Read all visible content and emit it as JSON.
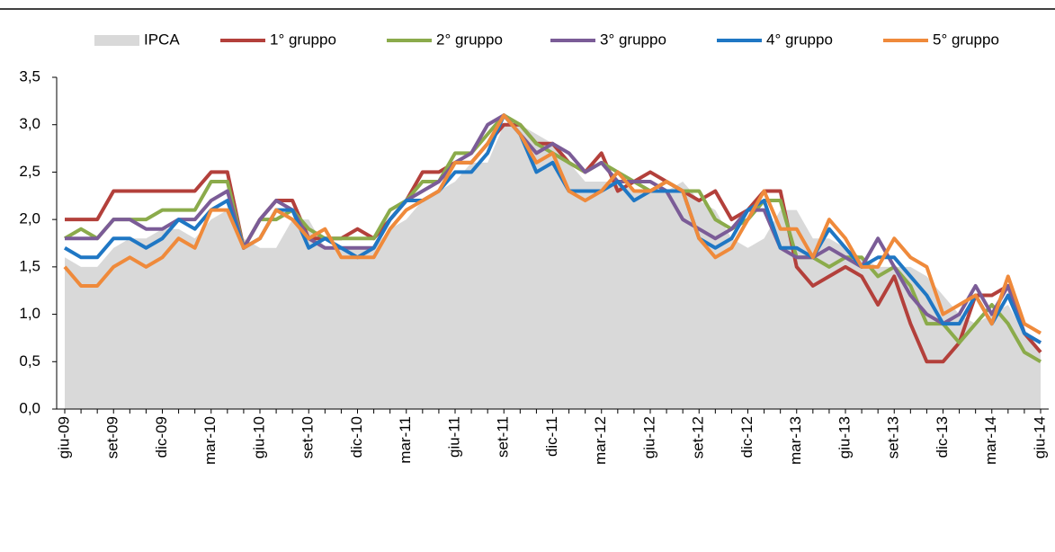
{
  "chart_data": {
    "type": "line",
    "categories": [
      "giu-09",
      null,
      null,
      "set-09",
      null,
      null,
      "dic-09",
      null,
      null,
      "mar-10",
      null,
      null,
      "giu-10",
      null,
      null,
      "set-10",
      null,
      null,
      "dic-10",
      null,
      null,
      "mar-11",
      null,
      null,
      "giu-11",
      null,
      null,
      "set-11",
      null,
      null,
      "dic-11",
      null,
      null,
      "mar-12",
      null,
      null,
      "giu-12",
      null,
      null,
      "set-12",
      null,
      null,
      "dic-12",
      null,
      null,
      "mar-13",
      null,
      null,
      "giu-13",
      null,
      null,
      "set-13",
      null,
      null,
      "dic-13",
      null,
      null,
      "mar-14",
      null,
      null,
      "giu-14"
    ],
    "series": [
      {
        "name": "IPCA",
        "type": "area",
        "color": "#d9d9d9",
        "values": [
          1.6,
          1.5,
          1.5,
          1.7,
          1.8,
          1.8,
          1.9,
          1.9,
          1.8,
          2.0,
          2.1,
          1.8,
          1.7,
          1.7,
          2.0,
          2.0,
          1.7,
          1.7,
          1.7,
          1.7,
          1.9,
          2.0,
          2.2,
          2.3,
          2.4,
          2.6,
          2.6,
          3.0,
          3.0,
          2.9,
          2.8,
          2.6,
          2.4,
          2.4,
          2.4,
          2.3,
          2.3,
          2.3,
          2.4,
          2.2,
          2.1,
          1.8,
          1.7,
          1.8,
          2.1,
          2.1,
          1.8,
          1.8,
          1.7,
          1.6,
          1.5,
          1.5,
          1.5,
          1.4,
          1.2,
          1.0,
          0.9,
          1.0,
          1.1,
          0.8,
          0.6
        ]
      },
      {
        "name": "1° gruppo",
        "color": "#b3403b",
        "values": [
          2.0,
          2.0,
          2.0,
          2.3,
          2.3,
          2.3,
          2.3,
          2.3,
          2.3,
          2.5,
          2.5,
          1.7,
          2.0,
          2.2,
          2.2,
          1.8,
          1.8,
          1.8,
          1.9,
          1.8,
          2.0,
          2.2,
          2.5,
          2.5,
          2.6,
          2.6,
          2.8,
          3.0,
          3.0,
          2.8,
          2.8,
          2.6,
          2.5,
          2.7,
          2.3,
          2.4,
          2.5,
          2.4,
          2.3,
          2.2,
          2.3,
          2.0,
          2.1,
          2.3,
          2.3,
          1.5,
          1.3,
          1.4,
          1.5,
          1.4,
          1.1,
          1.4,
          0.9,
          0.5,
          0.5,
          0.7,
          1.2,
          1.2,
          1.3,
          0.8,
          0.6
        ]
      },
      {
        "name": "2° gruppo",
        "color": "#8bab4b",
        "values": [
          1.8,
          1.9,
          1.8,
          2.0,
          2.0,
          2.0,
          2.1,
          2.1,
          2.1,
          2.4,
          2.4,
          1.7,
          2.0,
          2.0,
          2.1,
          1.9,
          1.8,
          1.8,
          1.8,
          1.8,
          2.1,
          2.2,
          2.4,
          2.4,
          2.7,
          2.7,
          2.9,
          3.1,
          3.0,
          2.8,
          2.7,
          2.6,
          2.5,
          2.6,
          2.5,
          2.4,
          2.3,
          2.4,
          2.3,
          2.3,
          2.0,
          1.9,
          2.0,
          2.2,
          2.2,
          1.6,
          1.6,
          1.5,
          1.6,
          1.6,
          1.4,
          1.5,
          1.3,
          0.9,
          0.9,
          0.7,
          0.9,
          1.1,
          0.9,
          0.6,
          0.5
        ]
      },
      {
        "name": "3° gruppo",
        "color": "#7b5c97",
        "values": [
          1.8,
          1.8,
          1.8,
          2.0,
          2.0,
          1.9,
          1.9,
          2.0,
          2.0,
          2.2,
          2.3,
          1.7,
          2.0,
          2.2,
          2.1,
          1.8,
          1.7,
          1.7,
          1.7,
          1.7,
          2.0,
          2.2,
          2.3,
          2.4,
          2.6,
          2.7,
          3.0,
          3.1,
          2.9,
          2.7,
          2.8,
          2.7,
          2.5,
          2.6,
          2.4,
          2.4,
          2.4,
          2.3,
          2.0,
          1.9,
          1.8,
          1.9,
          2.1,
          2.1,
          1.7,
          1.6,
          1.6,
          1.7,
          1.6,
          1.5,
          1.8,
          1.5,
          1.2,
          1.0,
          0.9,
          1.0,
          1.3,
          1.0,
          1.3,
          0.8,
          0.7
        ]
      },
      {
        "name": "4° gruppo",
        "color": "#1f77c4",
        "values": [
          1.7,
          1.6,
          1.6,
          1.8,
          1.8,
          1.7,
          1.8,
          2.0,
          1.9,
          2.1,
          2.2,
          1.7,
          1.8,
          2.1,
          2.1,
          1.7,
          1.8,
          1.7,
          1.6,
          1.7,
          2.0,
          2.2,
          2.2,
          2.3,
          2.5,
          2.5,
          2.7,
          3.1,
          2.9,
          2.5,
          2.6,
          2.3,
          2.3,
          2.3,
          2.4,
          2.2,
          2.3,
          2.3,
          2.3,
          1.8,
          1.7,
          1.8,
          2.1,
          2.2,
          1.7,
          1.7,
          1.6,
          1.9,
          1.7,
          1.5,
          1.6,
          1.6,
          1.4,
          1.2,
          0.9,
          0.9,
          1.2,
          0.9,
          1.2,
          0.8,
          0.7
        ]
      },
      {
        "name": "5° gruppo",
        "color": "#ef8a3b",
        "values": [
          1.5,
          1.3,
          1.3,
          1.5,
          1.6,
          1.5,
          1.6,
          1.8,
          1.7,
          2.1,
          2.1,
          1.7,
          1.8,
          2.1,
          2.0,
          1.8,
          1.9,
          1.6,
          1.6,
          1.6,
          1.9,
          2.1,
          2.2,
          2.3,
          2.6,
          2.6,
          2.8,
          3.1,
          2.9,
          2.6,
          2.7,
          2.3,
          2.2,
          2.3,
          2.5,
          2.3,
          2.3,
          2.4,
          2.3,
          1.8,
          1.6,
          1.7,
          2.0,
          2.3,
          1.9,
          1.9,
          1.6,
          2.0,
          1.8,
          1.5,
          1.5,
          1.8,
          1.6,
          1.5,
          1.0,
          1.1,
          1.2,
          0.9,
          1.4,
          0.9,
          0.8
        ]
      }
    ],
    "ylim": [
      0,
      3.5
    ],
    "yticks": [
      {
        "value": 0,
        "label": "0,0"
      },
      {
        "value": 0.5,
        "label": "0,5"
      },
      {
        "value": 1,
        "label": "1,0"
      },
      {
        "value": 1.5,
        "label": "1,5"
      },
      {
        "value": 2,
        "label": "2,0"
      },
      {
        "value": 2.5,
        "label": "2,5"
      },
      {
        "value": 3,
        "label": "3,0"
      },
      {
        "value": 3.5,
        "label": "3,5"
      }
    ],
    "legend": "top"
  }
}
